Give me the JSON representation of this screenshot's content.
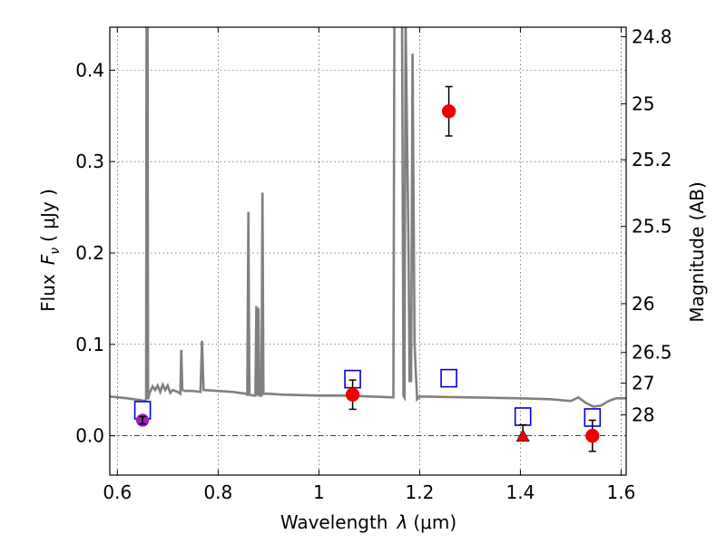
{
  "chart_data": {
    "type": "scatter",
    "xlabel_text": "Wavelength",
    "xlabel_var": "λ",
    "xlabel_unit": "(μm)",
    "ylabel_text": "Flux",
    "ylabel_var": "F",
    "ylabel_sub": "ν",
    "ylabel_unit": "( μJy )",
    "y2label": "Magnitude (AB)",
    "xlim": [
      0.585,
      1.61
    ],
    "ylim": [
      -0.043,
      0.447
    ],
    "x_ticks": [
      0.6,
      0.8,
      1.0,
      1.2,
      1.4,
      1.6
    ],
    "x_tick_labels": [
      "0.6",
      "0.8",
      "1",
      "1.2",
      "1.4",
      "1.6"
    ],
    "y_ticks": [
      0.0,
      0.1,
      0.2,
      0.3,
      0.4
    ],
    "y_tick_labels": [
      "0.0",
      "0.1",
      "0.2",
      "0.3",
      "0.4"
    ],
    "y2_ticks": [
      {
        "mag": 24.8,
        "label": "24.8"
      },
      {
        "mag": 25.0,
        "label": "25"
      },
      {
        "mag": 25.2,
        "label": "25.2"
      },
      {
        "mag": 25.5,
        "label": "25.5"
      },
      {
        "mag": 26.0,
        "label": "26"
      },
      {
        "mag": 26.5,
        "label": "26.5"
      },
      {
        "mag": 27.0,
        "label": "27"
      },
      {
        "mag": 28.0,
        "label": "28"
      }
    ],
    "grid": true,
    "spectrum": {
      "color": "#808080",
      "points": [
        [
          0.585,
          0.043
        ],
        [
          0.62,
          0.041
        ],
        [
          0.645,
          0.039
        ],
        [
          0.655,
          0.038
        ],
        [
          0.657,
          0.04
        ],
        [
          0.658,
          0.46
        ],
        [
          0.66,
          0.46
        ],
        [
          0.661,
          0.04
        ],
        [
          0.663,
          0.045
        ],
        [
          0.665,
          0.048
        ],
        [
          0.67,
          0.054
        ],
        [
          0.675,
          0.05
        ],
        [
          0.68,
          0.055
        ],
        [
          0.685,
          0.048
        ],
        [
          0.69,
          0.056
        ],
        [
          0.695,
          0.05
        ],
        [
          0.7,
          0.055
        ],
        [
          0.705,
          0.047
        ],
        [
          0.71,
          0.05
        ],
        [
          0.72,
          0.048
        ],
        [
          0.725,
          0.046
        ],
        [
          0.727,
          0.094
        ],
        [
          0.729,
          0.05
        ],
        [
          0.735,
          0.049
        ],
        [
          0.75,
          0.049
        ],
        [
          0.765,
          0.048
        ],
        [
          0.768,
          0.104
        ],
        [
          0.771,
          0.05
        ],
        [
          0.8,
          0.049
        ],
        [
          0.83,
          0.048
        ],
        [
          0.855,
          0.046
        ],
        [
          0.858,
          0.045
        ],
        [
          0.86,
          0.245
        ],
        [
          0.862,
          0.045
        ],
        [
          0.87,
          0.044
        ],
        [
          0.874,
          0.044
        ],
        [
          0.876,
          0.142
        ],
        [
          0.878,
          0.044
        ],
        [
          0.88,
          0.14
        ],
        [
          0.882,
          0.044
        ],
        [
          0.886,
          0.044
        ],
        [
          0.888,
          0.266
        ],
        [
          0.89,
          0.046
        ],
        [
          0.9,
          0.046
        ],
        [
          0.93,
          0.045
        ],
        [
          1.0,
          0.044
        ],
        [
          1.06,
          0.044
        ],
        [
          1.1,
          0.043
        ],
        [
          1.148,
          0.042
        ],
        [
          1.15,
          0.46
        ],
        [
          1.165,
          0.46
        ],
        [
          1.168,
          0.044
        ],
        [
          1.17,
          0.042
        ],
        [
          1.172,
          0.46
        ],
        [
          1.178,
          0.2
        ],
        [
          1.18,
          0.06
        ],
        [
          1.183,
          0.06
        ],
        [
          1.186,
          0.418
        ],
        [
          1.19,
          0.1
        ],
        [
          1.195,
          0.04
        ],
        [
          1.2,
          0.043
        ],
        [
          1.3,
          0.042
        ],
        [
          1.4,
          0.041
        ],
        [
          1.46,
          0.04
        ],
        [
          1.5,
          0.038
        ],
        [
          1.515,
          0.042
        ],
        [
          1.53,
          0.036
        ],
        [
          1.545,
          0.032
        ],
        [
          1.56,
          0.033
        ],
        [
          1.575,
          0.038
        ],
        [
          1.59,
          0.041
        ],
        [
          1.61,
          0.041
        ]
      ]
    },
    "boxes": {
      "color": "#0000dd",
      "points": [
        {
          "x": 0.65,
          "y": 0.028
        },
        {
          "x": 1.067,
          "y": 0.062
        },
        {
          "x": 1.258,
          "y": 0.063
        },
        {
          "x": 1.405,
          "y": 0.021
        },
        {
          "x": 1.543,
          "y": 0.02
        }
      ]
    },
    "measurements": [
      {
        "x": 0.65,
        "y": 0.017,
        "err": 0.004,
        "marker": "circle",
        "color": "#a020c0"
      },
      {
        "x": 1.067,
        "y": 0.045,
        "err": 0.016,
        "marker": "circle",
        "color": "#ee0000"
      },
      {
        "x": 1.258,
        "y": 0.355,
        "err": 0.027,
        "marker": "circle",
        "color": "#ee0000"
      },
      {
        "x": 1.405,
        "y": 0.0,
        "err_up": 0.012,
        "marker": "triangle",
        "color": "#ee0000"
      },
      {
        "x": 1.543,
        "y": 0.0,
        "err": 0.017,
        "marker": "circle",
        "color": "#ee0000"
      }
    ],
    "zero_line": {
      "y": 0.0,
      "style": "dash-dot"
    }
  }
}
